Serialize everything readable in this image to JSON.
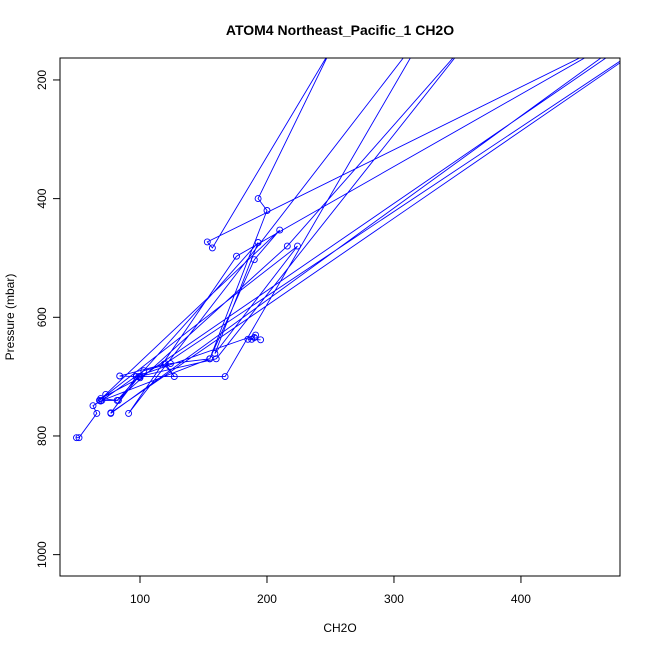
{
  "chart_data": {
    "type": "line",
    "title": "ATOM4 Northeast_Pacific_1 CH2O",
    "xlabel": "CH2O",
    "ylabel": "Pressure (mbar)",
    "xlim": [
      37,
      478
    ],
    "ylim": [
      1036,
      163
    ],
    "y_reversed": true,
    "x_ticks": [
      100,
      200,
      300,
      400
    ],
    "y_ticks": [
      200,
      400,
      600,
      800,
      1000
    ],
    "grid": false,
    "legend": "none",
    "colors": {
      "series": "#0000ff",
      "axis": "#000000"
    },
    "series": [
      {
        "x": [
          50,
          52,
          66,
          63,
          69,
          155,
          200,
          193,
          250,
          157,
          153,
          520,
          100,
          69,
          83,
          70,
          103,
          124,
          155,
          190,
          210,
          73,
          68,
          224,
          159,
          193,
          82,
          216,
          360,
          160,
          99,
          77,
          540,
          120,
          127,
          119,
          84,
          97,
          77,
          510,
          176,
          91,
          330,
          167,
          100,
          97,
          191,
          188,
          190,
          185,
          195
        ],
        "y": [
          803,
          803,
          762,
          749,
          741,
          670,
          420,
          400,
          150,
          483,
          473,
          85,
          702,
          737,
          740,
          740,
          690,
          678,
          670,
          503,
          453,
          730,
          740,
          480,
          661,
          474,
          740,
          480,
          130,
          670,
          700,
          761,
          80,
          678,
          700,
          679,
          699,
          700,
          762,
          90,
          497,
          762,
          100,
          700,
          700,
          700,
          630,
          637,
          634,
          637,
          638
        ]
      }
    ]
  }
}
